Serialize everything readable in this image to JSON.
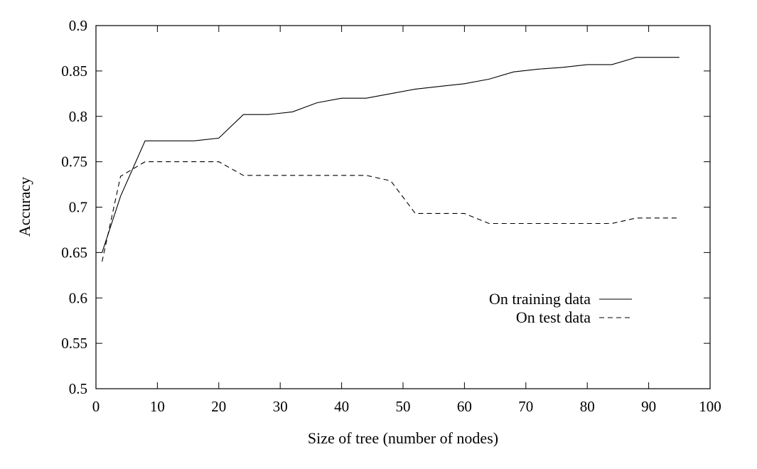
{
  "chart_data": {
    "type": "line",
    "title": "",
    "xlabel": "Size of tree (number of nodes)",
    "ylabel": "Accuracy",
    "xlim": [
      0,
      100
    ],
    "ylim": [
      0.5,
      0.9
    ],
    "xticks": [
      "0",
      "10",
      "20",
      "30",
      "40",
      "50",
      "60",
      "70",
      "80",
      "90",
      "100"
    ],
    "yticks": [
      "0.5",
      "0.55",
      "0.6",
      "0.65",
      "0.7",
      "0.75",
      "0.8",
      "0.85",
      "0.9"
    ],
    "grid": false,
    "legend_position": "lower-right",
    "series": [
      {
        "name": "On training data",
        "style": "solid",
        "color": "#000000",
        "x": [
          1,
          4,
          8,
          12,
          16,
          20,
          24,
          28,
          32,
          36,
          40,
          44,
          48,
          52,
          56,
          60,
          64,
          68,
          72,
          76,
          80,
          84,
          88,
          92,
          95
        ],
        "y": [
          0.65,
          0.712,
          0.773,
          0.773,
          0.773,
          0.776,
          0.802,
          0.802,
          0.805,
          0.815,
          0.82,
          0.82,
          0.825,
          0.83,
          0.833,
          0.836,
          0.841,
          0.849,
          0.852,
          0.854,
          0.857,
          0.857,
          0.865,
          0.865,
          0.865
        ]
      },
      {
        "name": "On test data",
        "style": "dashed",
        "color": "#000000",
        "x": [
          1,
          4,
          8,
          12,
          16,
          20,
          24,
          28,
          32,
          36,
          40,
          44,
          48,
          52,
          56,
          60,
          64,
          68,
          72,
          76,
          80,
          84,
          88,
          92,
          95
        ],
        "y": [
          0.64,
          0.734,
          0.75,
          0.75,
          0.75,
          0.75,
          0.735,
          0.735,
          0.735,
          0.735,
          0.735,
          0.735,
          0.729,
          0.693,
          0.693,
          0.693,
          0.682,
          0.682,
          0.682,
          0.682,
          0.682,
          0.682,
          0.688,
          0.688,
          0.688
        ]
      }
    ]
  }
}
